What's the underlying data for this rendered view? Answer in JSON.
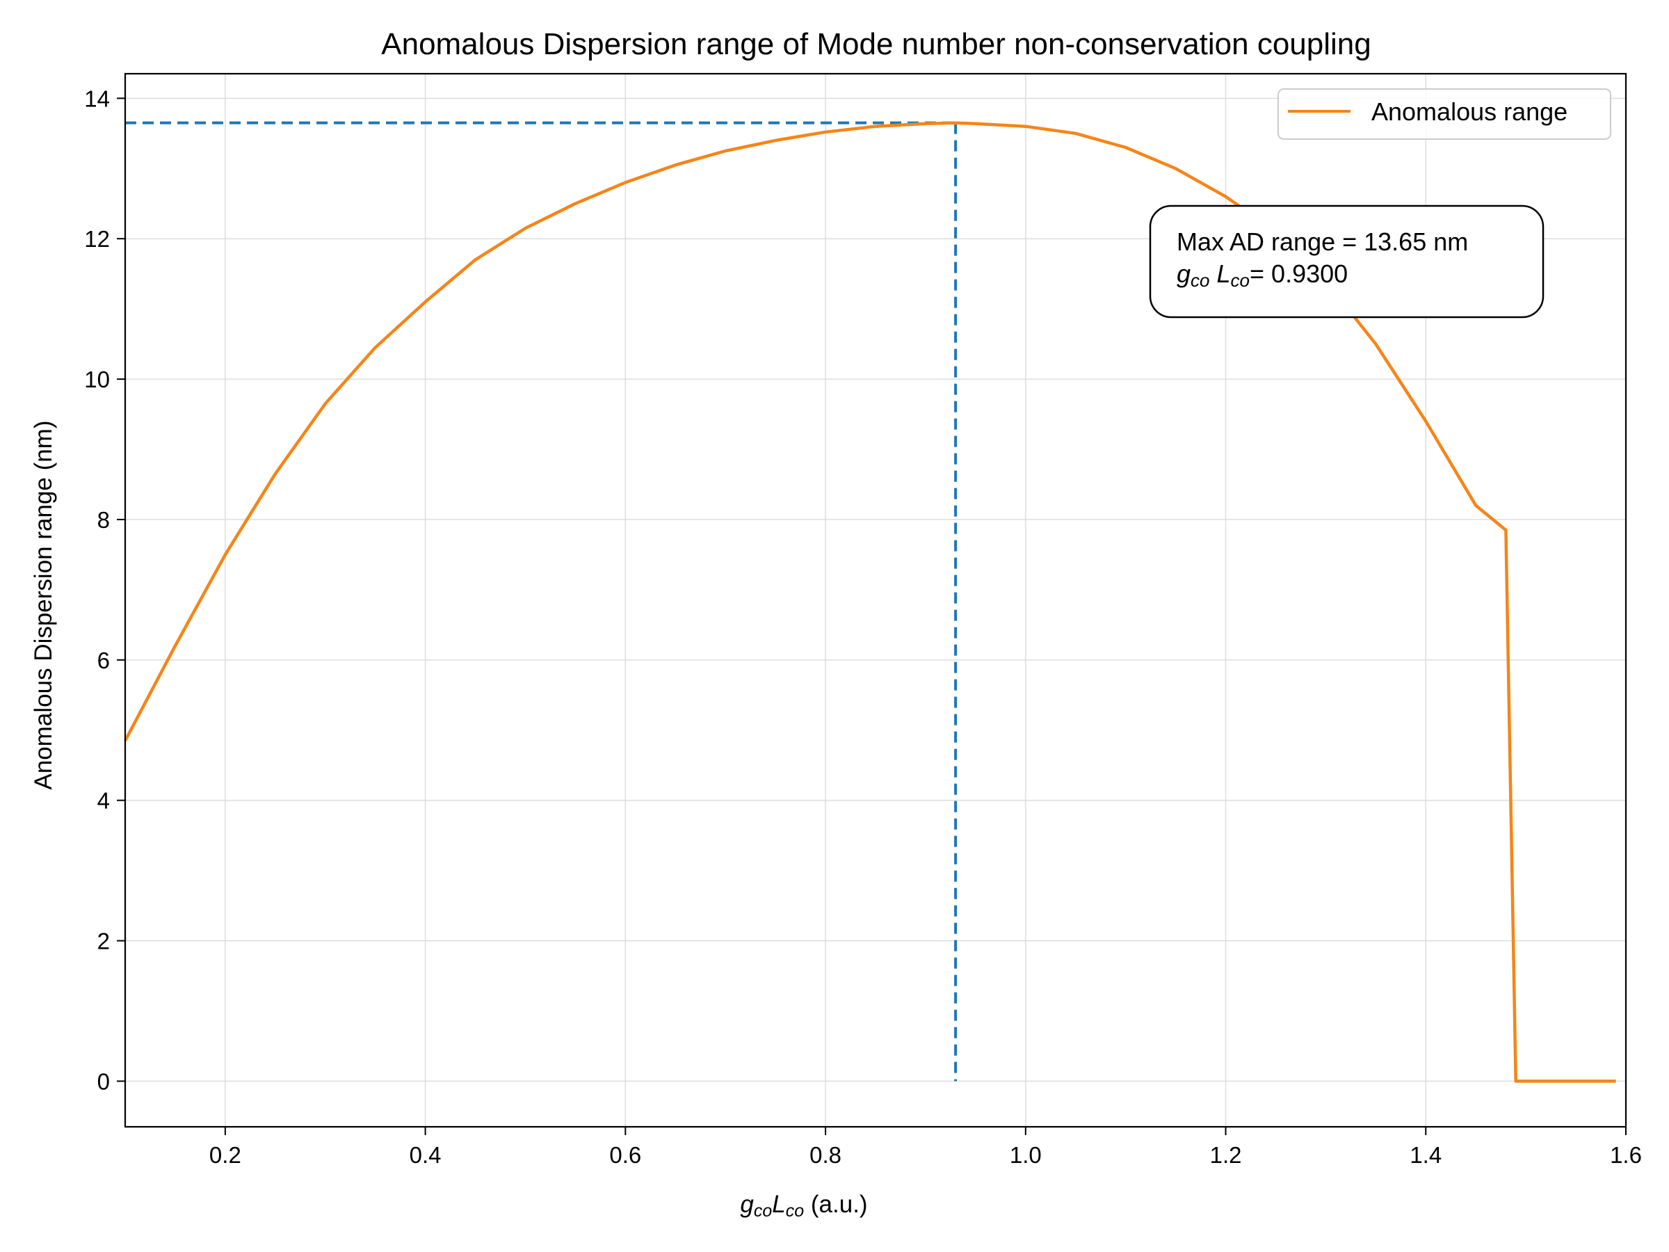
{
  "chart_data": {
    "type": "line",
    "title": "Anomalous Dispersion range of Mode number non-conservation coupling",
    "xlabel": {
      "base1": "g",
      "sub1": "co",
      "base2": "L",
      "sub2": "co",
      "unit": " (a.u.)"
    },
    "ylabel": "Anomalous Dispersion range (nm)",
    "xlim": [
      0.1,
      1.6
    ],
    "ylim": [
      -0.65,
      14.35
    ],
    "xticks": [
      0.2,
      0.4,
      0.6,
      0.8,
      1.0,
      1.2,
      1.4,
      1.6
    ],
    "xtick_labels": [
      "0.2",
      "0.4",
      "0.6",
      "0.8",
      "1.0",
      "1.2",
      "1.4",
      "1.6"
    ],
    "yticks": [
      0,
      2,
      4,
      6,
      8,
      10,
      12,
      14
    ],
    "ytick_labels": [
      "0",
      "2",
      "4",
      "6",
      "8",
      "10",
      "12",
      "14"
    ],
    "grid": true,
    "legend_position": "top-right",
    "series": [
      {
        "name": "Anomalous range",
        "color": "#f58518",
        "x": [
          0.1,
          0.15,
          0.2,
          0.25,
          0.3,
          0.35,
          0.4,
          0.45,
          0.5,
          0.55,
          0.6,
          0.65,
          0.7,
          0.75,
          0.8,
          0.85,
          0.9,
          0.93,
          0.95,
          1.0,
          1.05,
          1.1,
          1.15,
          1.2,
          1.25,
          1.3,
          1.35,
          1.4,
          1.45,
          1.48,
          1.49,
          1.5,
          1.55,
          1.59
        ],
        "y": [
          4.85,
          6.2,
          7.5,
          8.65,
          9.65,
          10.45,
          11.1,
          11.7,
          12.15,
          12.5,
          12.8,
          13.05,
          13.25,
          13.4,
          13.52,
          13.6,
          13.64,
          13.65,
          13.64,
          13.6,
          13.5,
          13.3,
          13.0,
          12.6,
          12.1,
          11.4,
          10.5,
          9.4,
          8.2,
          7.85,
          0.0,
          0.0,
          0.0,
          0.0
        ]
      }
    ],
    "reference_lines": {
      "color": "#1f77b4",
      "x_value": 0.93,
      "y_value": 13.65
    },
    "annotation": {
      "line1": "Max AD range = 13.65 nm",
      "g": "g",
      "g_sub": "co",
      "l": "L",
      "l_sub": "co",
      "value": "= 0.9300"
    }
  }
}
